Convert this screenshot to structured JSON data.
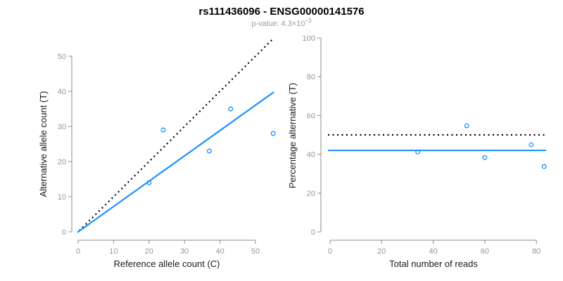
{
  "header": {
    "title": "rs111436096 - ENSG00000141576",
    "pvalue_prefix": "p-value: 4.3×10",
    "pvalue_exponent": "−3"
  },
  "colors": {
    "accent_blue": "#1E90FF",
    "dotted_black": "#000000",
    "axis_gray": "#8c8c8c",
    "tick_label_gray": "#979797",
    "subtitle_gray": "#9b9b9b"
  },
  "chart_data": [
    {
      "type": "scatter",
      "panel": "left",
      "title": "",
      "xlabel": "Reference allele count (C)",
      "ylabel": "Alternative allele count (T)",
      "xlim": [
        0,
        55
      ],
      "ylim": [
        0,
        55
      ],
      "xticks": [
        0,
        10,
        20,
        30,
        40,
        50
      ],
      "yticks": [
        0,
        10,
        20,
        30,
        40,
        50
      ],
      "grid": false,
      "legend_position": "none",
      "series": [
        {
          "name": "samples",
          "marker": "open-circle",
          "color": "#1E90FF",
          "points": [
            [
              20,
              14
            ],
            [
              24,
              29
            ],
            [
              37,
              23
            ],
            [
              43,
              35
            ],
            [
              55,
              28
            ]
          ]
        }
      ],
      "lines": [
        {
          "name": "identity-line",
          "style": "dotted",
          "color": "#000000",
          "points": [
            [
              0.3,
              0.3
            ],
            [
              54.7,
              54.7
            ]
          ]
        },
        {
          "name": "fit-line",
          "style": "solid",
          "color": "#1E90FF",
          "slope": 0.72,
          "points": [
            [
              -0.2,
              -0.15
            ],
            [
              55.2,
              39.8
            ]
          ]
        }
      ]
    },
    {
      "type": "scatter",
      "panel": "right",
      "title": "",
      "xlabel": "Total number of reads",
      "ylabel": "Percentage alternative (T)",
      "xlim": [
        0,
        84
      ],
      "ylim": [
        0,
        100
      ],
      "xticks": [
        0,
        20,
        40,
        60,
        80
      ],
      "yticks": [
        0,
        20,
        40,
        60,
        80,
        100
      ],
      "grid": false,
      "legend_position": "none",
      "series": [
        {
          "name": "samples",
          "marker": "open-circle",
          "color": "#1E90FF",
          "points": [
            [
              34,
              41.2
            ],
            [
              53,
              54.7
            ],
            [
              60,
              38.3
            ],
            [
              78,
              44.9
            ],
            [
              83,
              33.7
            ]
          ]
        }
      ],
      "lines": [
        {
          "name": "expected-50pct-line",
          "style": "dotted",
          "color": "#000000",
          "y": 50
        },
        {
          "name": "mean-alt-pct-line",
          "style": "solid",
          "color": "#1E90FF",
          "y": 42
        }
      ]
    }
  ]
}
